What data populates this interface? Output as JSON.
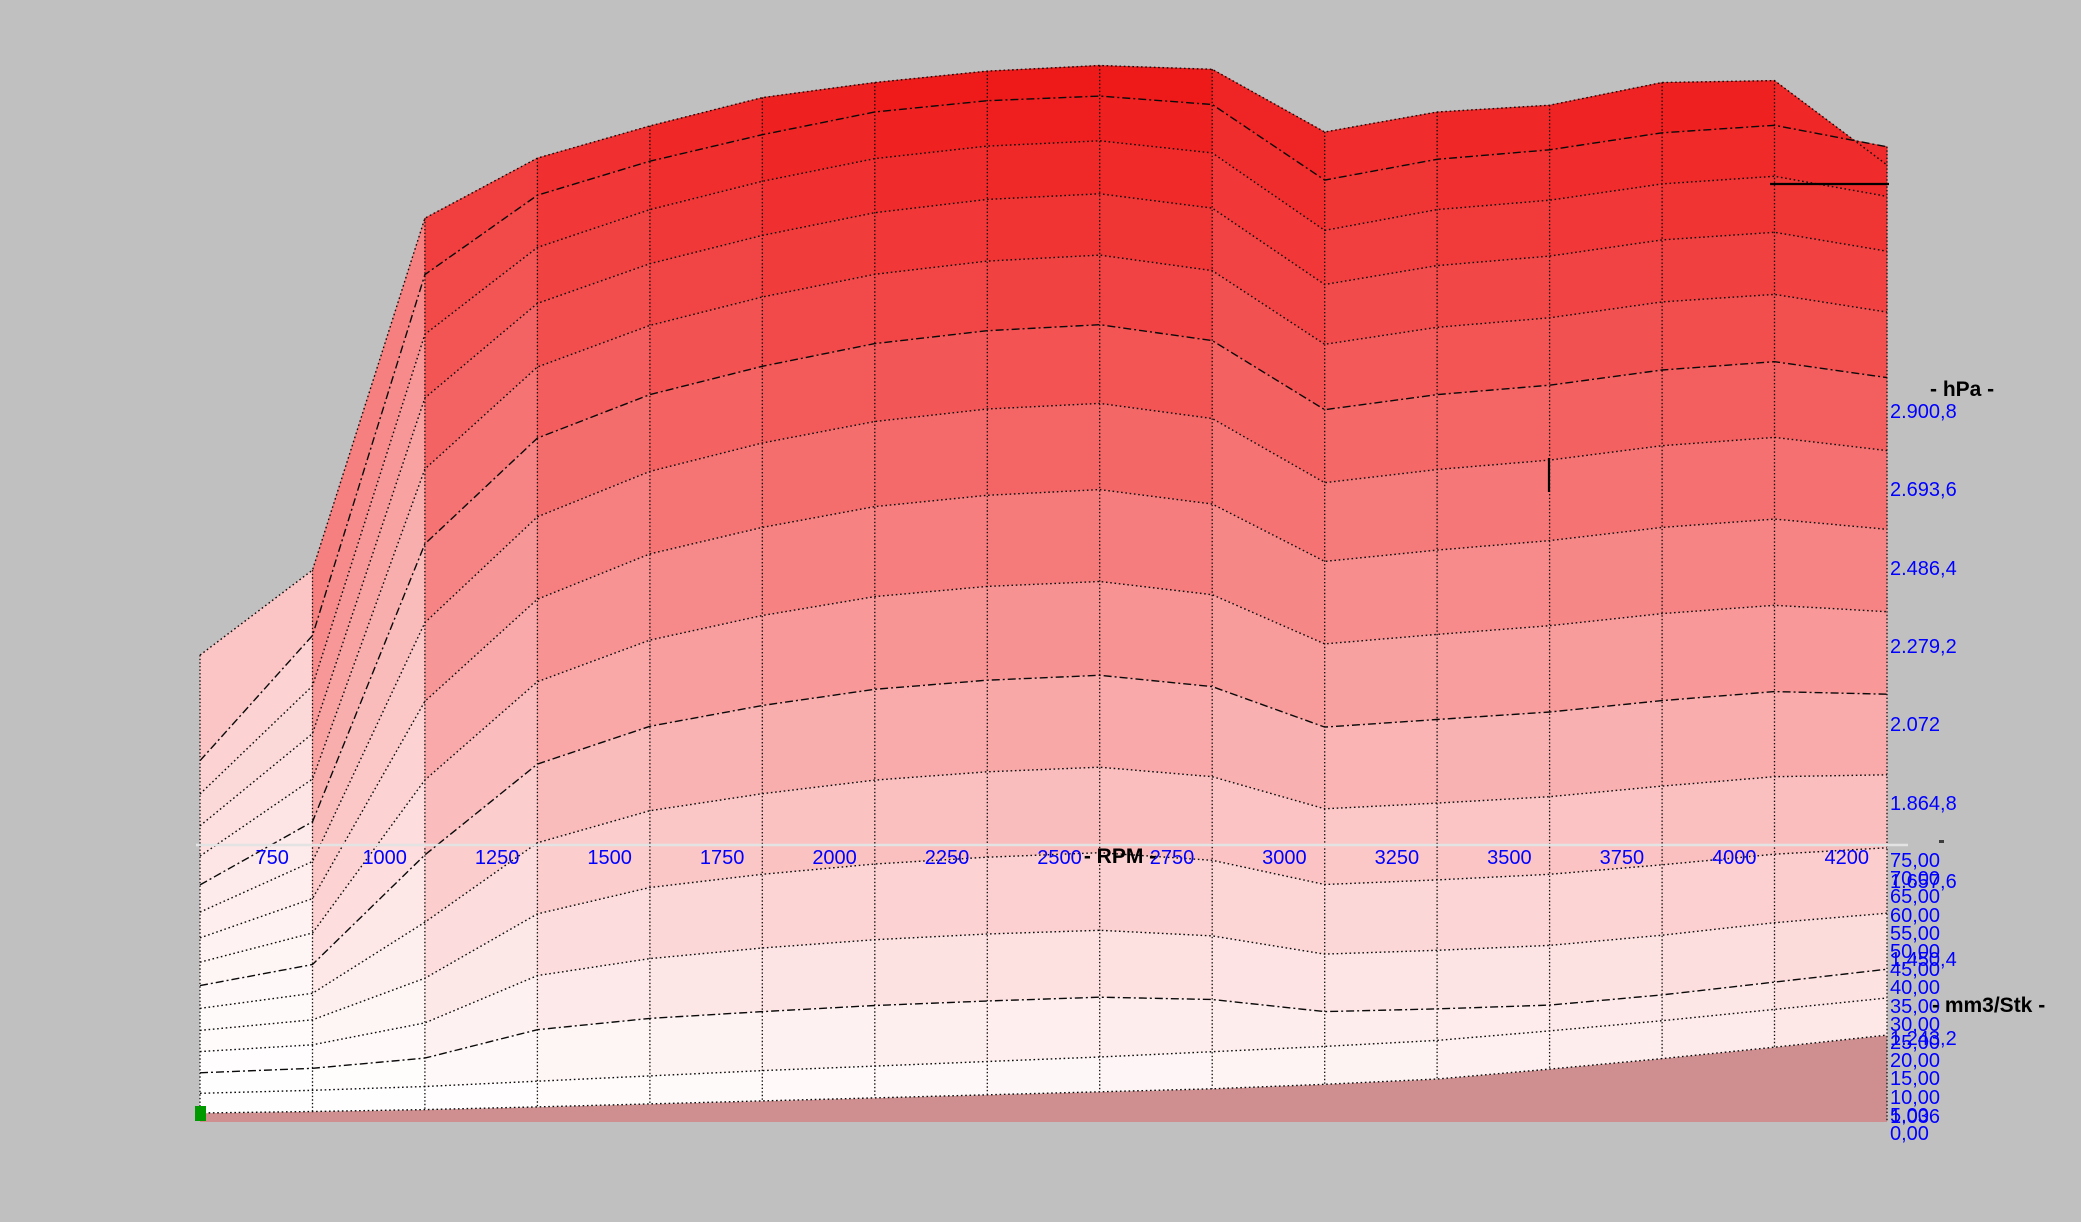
{
  "view": {
    "description": "3D map view of an ECU boost pressure map"
  },
  "colors": {
    "background": "#c0c0c0",
    "tick_text": "#0000ff",
    "axis_name_text": "#000000",
    "surface_low": "#ffffff",
    "surface_high": "#ee1414",
    "floor": "#cf8f90",
    "mesh_line": "#0a0a0a",
    "axis_line": "#e3e3e3",
    "marker": "#009a00"
  },
  "axes": {
    "rpm": {
      "name": "- RPM -",
      "tick_labels": [
        "750",
        "1000",
        "1250",
        "1500",
        "1750",
        "2000",
        "2250",
        "2500",
        "2750",
        "3000",
        "3250",
        "3500",
        "3750",
        "4000",
        "4200"
      ]
    },
    "hpa": {
      "name": "- hPa -",
      "tick_labels": [
        "2.900,8",
        "2.693,6",
        "2.486,4",
        "2.279,2",
        "2.072",
        "1.864,8",
        "1.657,6",
        "1.450,4",
        "1.243,2",
        "1.036"
      ],
      "tick_values": [
        2900.8,
        2693.6,
        2486.4,
        2279.2,
        2072,
        1864.8,
        1657.6,
        1450.4,
        1243.2,
        1036
      ]
    },
    "mm3": {
      "name": "- mm3/Stk -",
      "tick_labels": [
        "75,00",
        "70,00",
        "65,00",
        "60,00",
        "55,00",
        "50,00",
        "45,00",
        "40,00",
        "35,00",
        "30,00",
        "25,00",
        "20,00",
        "15,00",
        "10,00",
        "5,00",
        "0,00"
      ],
      "tick_values": [
        75,
        70,
        65,
        60,
        55,
        50,
        45,
        40,
        35,
        30,
        25,
        20,
        15,
        10,
        5,
        0
      ]
    }
  },
  "chart_data": {
    "type": "surface",
    "title": "",
    "xlabel": "RPM",
    "ylabel": "mm3/Stk",
    "zlabel": "hPa",
    "x_tick_values": [
      750,
      1000,
      1250,
      1500,
      1750,
      2000,
      2250,
      2500,
      2750,
      3000,
      3250,
      3500,
      3750,
      4000,
      4200
    ],
    "y_values_mm3": [
      0,
      5,
      10,
      15,
      20,
      25,
      30,
      35,
      40,
      45,
      50,
      55,
      60,
      65,
      70,
      75
    ],
    "z_tick_values": [
      1036,
      1243.2,
      1450.4,
      1657.6,
      1864.8,
      2072,
      2279.2,
      2486.4,
      2693.6,
      2900.8
    ],
    "z_range_estimate": [
      1036,
      3105
    ],
    "grid_columns": 16,
    "grid_rows": 16,
    "values_hpa": [
      [
        1036,
        1040,
        1045,
        1052,
        1060,
        1068,
        1076,
        1084,
        1092,
        1100,
        1112,
        1126,
        1152,
        1180,
        1210,
        1242
      ],
      [
        1040,
        1048,
        1058,
        1072,
        1086,
        1100,
        1112,
        1124,
        1136,
        1150,
        1164,
        1180,
        1205,
        1232,
        1262,
        1292
      ],
      [
        1046,
        1058,
        1085,
        1160,
        1190,
        1208,
        1224,
        1236,
        1246,
        1240,
        1208,
        1215,
        1225,
        1252,
        1286,
        1320
      ],
      [
        1054,
        1072,
        1130,
        1255,
        1300,
        1328,
        1350,
        1365,
        1375,
        1360,
        1312,
        1322,
        1335,
        1362,
        1395,
        1420
      ],
      [
        1062,
        1090,
        1200,
        1370,
        1440,
        1475,
        1502,
        1520,
        1532,
        1512,
        1448,
        1460,
        1475,
        1500,
        1528,
        1545
      ],
      [
        1072,
        1112,
        1300,
        1510,
        1595,
        1640,
        1676,
        1698,
        1710,
        1685,
        1600,
        1615,
        1632,
        1660,
        1685,
        1690
      ],
      [
        1084,
        1140,
        1430,
        1670,
        1770,
        1825,
        1868,
        1892,
        1905,
        1875,
        1768,
        1788,
        1808,
        1838,
        1862,
        1855
      ],
      [
        1098,
        1175,
        1580,
        1840,
        1950,
        2015,
        2065,
        2092,
        2105,
        2070,
        1940,
        1965,
        1988,
        2020,
        2042,
        2025
      ],
      [
        1114,
        1218,
        1740,
        2010,
        2130,
        2200,
        2255,
        2285,
        2300,
        2262,
        2110,
        2140,
        2165,
        2200,
        2222,
        2195
      ],
      [
        1134,
        1268,
        1900,
        2180,
        2300,
        2375,
        2432,
        2465,
        2480,
        2440,
        2270,
        2305,
        2330,
        2368,
        2390,
        2355
      ],
      [
        1158,
        1325,
        2060,
        2340,
        2455,
        2530,
        2590,
        2624,
        2640,
        2598,
        2415,
        2455,
        2480,
        2520,
        2542,
        2500
      ],
      [
        1186,
        1390,
        2210,
        2480,
        2590,
        2665,
        2725,
        2760,
        2776,
        2735,
        2540,
        2585,
        2610,
        2652,
        2672,
        2625
      ],
      [
        1218,
        1462,
        2350,
        2600,
        2705,
        2780,
        2840,
        2875,
        2890,
        2852,
        2650,
        2700,
        2725,
        2768,
        2788,
        2738
      ],
      [
        1254,
        1540,
        2470,
        2700,
        2800,
        2875,
        2935,
        2968,
        2982,
        2950,
        2745,
        2800,
        2825,
        2868,
        2888,
        2835
      ],
      [
        1294,
        1625,
        2580,
        2790,
        2880,
        2950,
        3010,
        3040,
        3052,
        3030,
        2830,
        2885,
        2910,
        2955,
        2975,
        2918
      ],
      [
        1525,
        1750,
        2681,
        2840,
        2925,
        3000,
        3040,
        3070,
        3085,
        3075,
        2909,
        2962,
        2980,
        3040,
        3045,
        2822
      ]
    ]
  }
}
